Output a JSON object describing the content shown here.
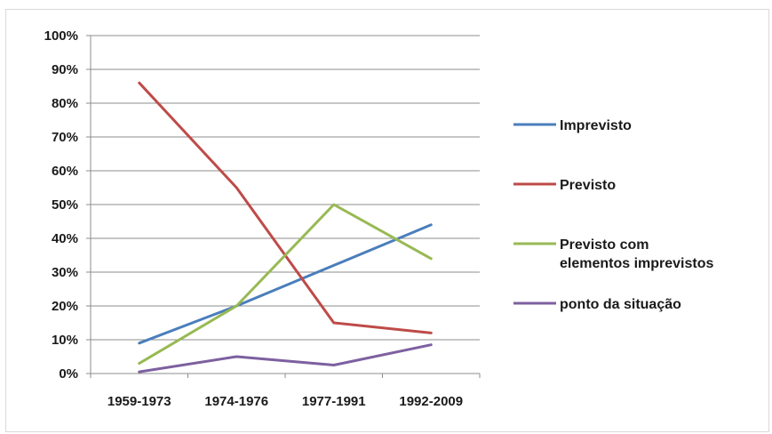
{
  "chart_data": {
    "type": "line",
    "title": "",
    "xlabel": "",
    "ylabel": "",
    "categories": [
      "1959-1973",
      "1974-1976",
      "1977-1991",
      "1992-2009"
    ],
    "ylim": [
      0,
      100
    ],
    "yticks": [
      "0%",
      "10%",
      "20%",
      "30%",
      "40%",
      "50%",
      "60%",
      "70%",
      "80%",
      "90%",
      "100%"
    ],
    "grid": true,
    "legend_position": "right",
    "series": [
      {
        "name": "Imprevisto",
        "color": "#4a7ebb",
        "values": [
          9,
          20,
          32,
          44
        ]
      },
      {
        "name": "Previsto",
        "color": "#be4b48",
        "values": [
          86,
          55,
          15,
          12
        ]
      },
      {
        "name": "Previsto com elementos imprevistos",
        "name_lines": [
          "Previsto com",
          "elementos imprevistos"
        ],
        "color": "#98b954",
        "values": [
          3,
          20,
          50,
          34
        ]
      },
      {
        "name": "ponto da situação",
        "color": "#7d60a0",
        "values": [
          0.5,
          5,
          2.5,
          8.5
        ]
      }
    ]
  }
}
